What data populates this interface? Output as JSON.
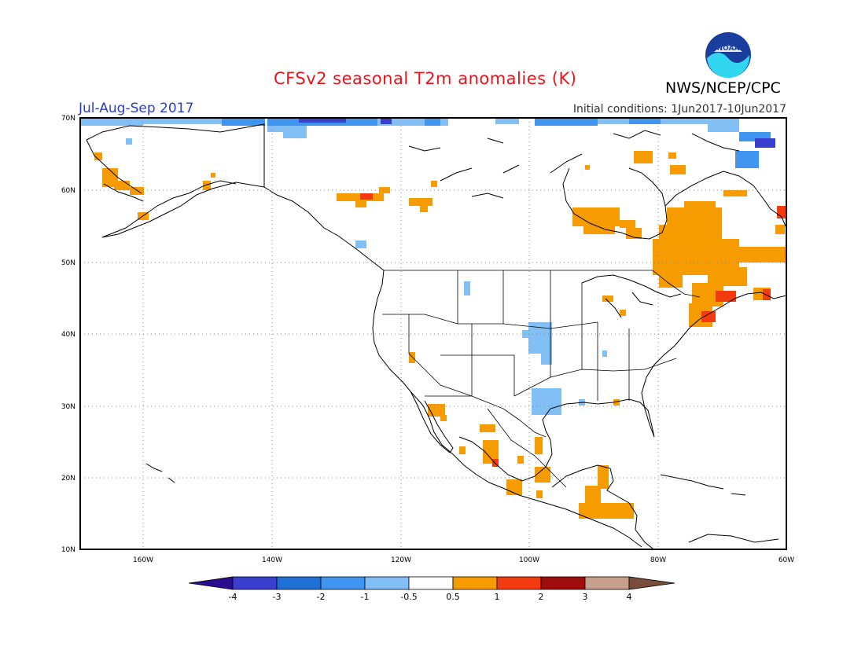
{
  "title": "CFSv2 seasonal T2m anomalies (K)",
  "agency": "NWS/NCEP/CPC",
  "logo_text": "NOAA",
  "season": "Jul-Aug-Sep 2017",
  "initial_conditions": "Initial conditions: 1Jun2017-10Jun2017",
  "lat_labels": [
    "70N",
    "60N",
    "50N",
    "40N",
    "30N",
    "20N",
    "10N"
  ],
  "lon_labels": [
    "160W",
    "140W",
    "120W",
    "100W",
    "80W",
    "60W"
  ],
  "colorbar": {
    "labels": [
      "-4",
      "-3",
      "-2",
      "-1",
      "-0.5",
      "0.5",
      "1",
      "2",
      "3",
      "4"
    ],
    "colors": [
      "#2a0d8e",
      "#3b3fd0",
      "#1e6fd6",
      "#3f95f0",
      "#82bff5",
      "#ffffff",
      "#f79c00",
      "#f23b0f",
      "#a00c0c",
      "#c6a08a",
      "#7a4c3c"
    ]
  },
  "colors": {
    "border": "#000000",
    "grid": "#888888",
    "title": "#e8141c",
    "season": "#2a3ccf"
  }
}
